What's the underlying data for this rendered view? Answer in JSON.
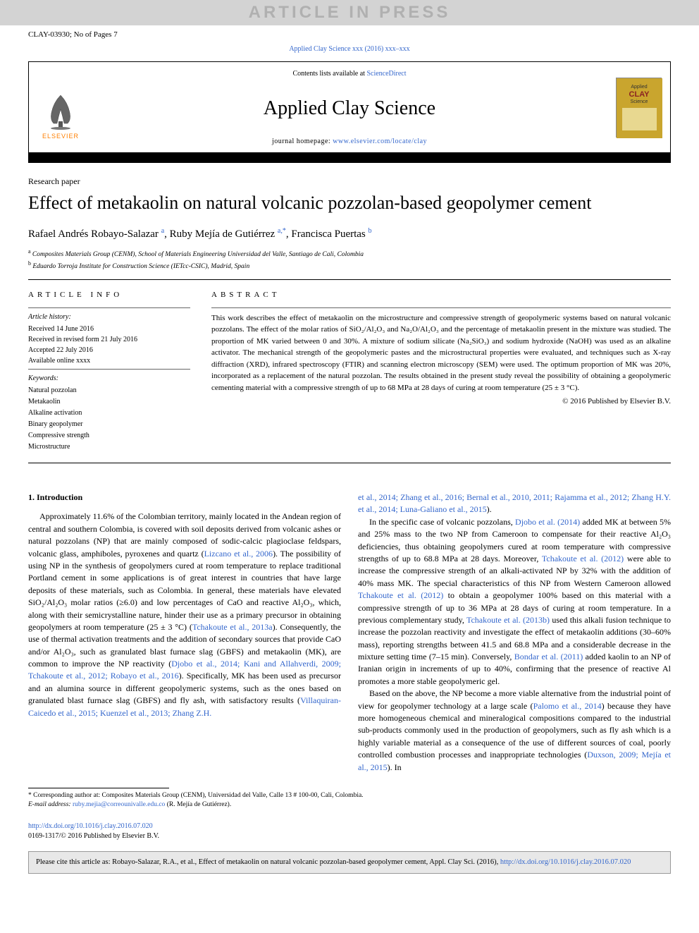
{
  "watermark": "ARTICLE IN PRESS",
  "article_id_line": "CLAY-03930; No of Pages 7",
  "journal_citation": "Applied Clay Science xxx (2016) xxx–xxx",
  "header": {
    "contents_text": "Contents lists available at ",
    "contents_link": "ScienceDirect",
    "journal_name": "Applied Clay Science",
    "homepage_label": "journal homepage: ",
    "homepage_url": "www.elsevier.com/locate/clay",
    "elsevier_label": "ELSEVIER"
  },
  "article_type": "Research paper",
  "title": "Effect of metakaolin on natural volcanic pozzolan-based geopolymer cement",
  "authors_html": "Rafael Andrés Robayo-Salazar <sup>a</sup>, Ruby Mejía de Gutiérrez <sup>a,*</sup>, Francisca Puertas <sup>b</sup>",
  "affiliations": [
    "a  Composites Materials Group (CENM), School of Materials Engineering Universidad del Valle, Santiago de Cali, Colombia",
    "b  Eduardo Torroja Institute for Construction Science (IETcc-CSIC), Madrid, Spain"
  ],
  "info": {
    "heading": "article info",
    "history_label": "Article history:",
    "history": [
      "Received 14 June 2016",
      "Received in revised form 21 July 2016",
      "Accepted 22 July 2016",
      "Available online xxxx"
    ],
    "keywords_label": "Keywords:",
    "keywords": [
      "Natural pozzolan",
      "Metakaolin",
      "Alkaline activation",
      "Binary geopolymer",
      "Compressive strength",
      "Microstructure"
    ]
  },
  "abstract": {
    "heading": "abstract",
    "text": "This work describes the effect of metakaolin on the microstructure and compressive strength of geopolymeric systems based on natural volcanic pozzolans. The effect of the molar ratios of SiO₂/Al₂O₃ and Na₂O/Al₂O₃ and the percentage of metakaolin present in the mixture was studied. The proportion of MK varied between 0 and 30%. A mixture of sodium silicate (Na₂SiO₃) and sodium hydroxide (NaOH) was used as an alkaline activator. The mechanical strength of the geopolymeric pastes and the microstructural properties were evaluated, and techniques such as X-ray diffraction (XRD), infrared spectroscopy (FTIR) and scanning electron microscopy (SEM) were used. The optimum proportion of MK was 20%, incorporated as a replacement of the natural pozzolan. The results obtained in the present study reveal the possibility of obtaining a geopolymeric cementing material with a compressive strength of up to 68 MPa at 28 days of curing at room temperature (25 ± 3 °C).",
    "copyright": "© 2016 Published by Elsevier B.V."
  },
  "body": {
    "section_heading": "1. Introduction",
    "col1_p1": "Approximately 11.6% of the Colombian territory, mainly located in the Andean region of central and southern Colombia, is covered with soil deposits derived from volcanic ashes or natural pozzolans (NP) that are mainly composed of sodic-calcic plagioclase feldspars, volcanic glass, amphiboles, pyroxenes and quartz (<span class=\"ref-link\">Lizcano et al., 2006</span>). The possibility of using NP in the synthesis of geopolymers cured at room temperature to replace traditional Portland cement in some applications is of great interest in countries that have large deposits of these materials, such as Colombia. In general, these materials have elevated SiO₂/Al₂O₃ molar ratios (≥6.0) and low percentages of CaO and reactive Al₂O₃, which, along with their semicrystalline nature, hinder their use as a primary precursor in obtaining geopolymers at room temperature (25 ± 3 °C) (<span class=\"ref-link\">Tchakoute et al., 2013a</span>). Consequently, the use of thermal activation treatments and the addition of secondary sources that provide CaO and/or Al₂O₃, such as granulated blast furnace slag (GBFS) and metakaolin (MK), are common to improve the NP reactivity (<span class=\"ref-link\">Djobo et al., 2014; Kani and Allahverdi, 2009; Tchakoute et al., 2012; Robayo et al., 2016</span>). Specifically, MK has been used as precursor and an alumina source in different geopolymeric systems, such as the ones based on granulated blast furnace slag (GBFS) and fly ash, with satisfactory results (<span class=\"ref-link\">Villaquiran-Caicedo et al., 2015; Kuenzel et al., 2013; Zhang Z.H.</span>",
    "col2_cont": "<span class=\"ref-link\">et al., 2014; Zhang et al., 2016; Bernal et al., 2010, 2011; Rajamma et al., 2012; Zhang H.Y. et al., 2014; Luna-Galiano et al., 2015</span>).",
    "col2_p2": "In the specific case of volcanic pozzolans, <span class=\"ref-link\">Djobo et al. (2014)</span> added MK at between 5% and 25% mass to the two NP from Cameroon to compensate for their reactive Al₂O₃ deficiencies, thus obtaining geopolymers cured at room temperature with compressive strengths of up to 68.8 MPa at 28 days. Moreover, <span class=\"ref-link\">Tchakoute et al. (2012)</span> were able to increase the compressive strength of an alkali-activated NP by 32% with the addition of 40% mass MK. The special characteristics of this NP from Western Cameroon allowed <span class=\"ref-link\">Tchakoute et al. (2012)</span> to obtain a geopolymer 100% based on this material with a compressive strength of up to 36 MPa at 28 days of curing at room temperature. In a previous complementary study, <span class=\"ref-link\">Tchakoute et al. (2013b)</span> used this alkali fusion technique to increase the pozzolan reactivity and investigate the effect of metakaolin additions (30–60% mass), reporting strengths between 41.5 and 68.8 MPa and a considerable decrease in the mixture setting time (7–15 min). Conversely, <span class=\"ref-link\">Bondar et al. (2011)</span> added kaolin to an NP of Iranian origin in increments of up to 40%, confirming that the presence of reactive Al promotes a more stable geopolymeric gel.",
    "col2_p3": "Based on the above, the NP become a more viable alternative from the industrial point of view for geopolymer technology at a large scale (<span class=\"ref-link\">Palomo et al., 2014</span>) because they have more homogeneous chemical and mineralogical compositions compared to the industrial sub-products commonly used in the production of geopolymers, such as fly ash which is a highly variable material as a consequence of the use of different sources of coal, poorly controlled combustion processes and inappropriate technologies (<span class=\"ref-link\">Duxson, 2009; Mejía et al., 2015</span>). In"
  },
  "footnotes": {
    "corresponding": "*  Corresponding author at: Composites Materials Group (CENM), Universidad del Valle, Calle 13 # 100-00, Cali, Colombia.",
    "email_label": "E-mail address: ",
    "email": "ruby.mejia@correounivalle.edu.co",
    "email_name": " (R. Mejía de Gutiérrez)."
  },
  "doi": {
    "url": "http://dx.doi.org/10.1016/j.clay.2016.07.020",
    "issn_line": "0169-1317/© 2016 Published by Elsevier B.V."
  },
  "citation_box": {
    "text": "Please cite this article as: Robayo-Salazar, R.A., et al., Effect of metakaolin on natural volcanic pozzolan-based geopolymer cement, Appl. Clay Sci. (2016), ",
    "url": "http://dx.doi.org/10.1016/j.clay.2016.07.020"
  },
  "colors": {
    "link_color": "#3366cc",
    "watermark_bg": "#d3d3d3",
    "watermark_fg": "#b0b0b0",
    "elsevier_orange": "#ff7f00",
    "citation_box_bg": "#e8e8e8",
    "cover_gold": "#d4af37"
  }
}
